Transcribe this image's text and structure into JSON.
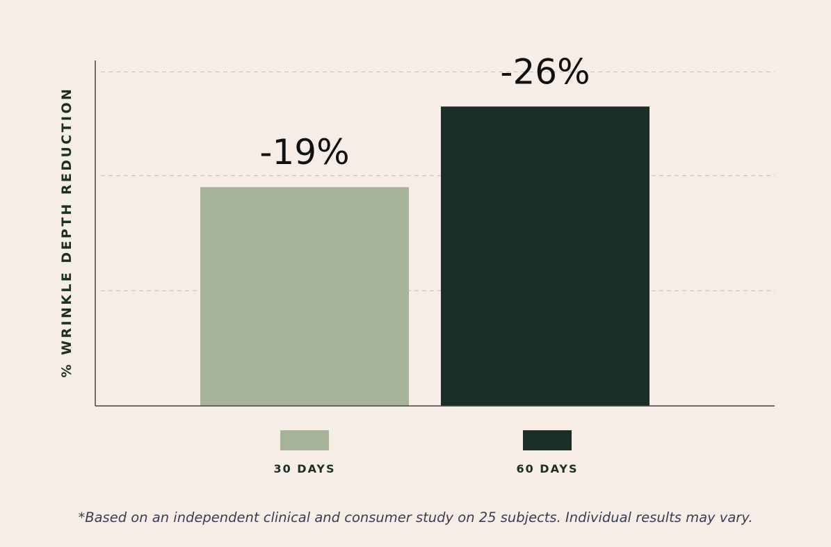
{
  "chart_data": {
    "type": "bar",
    "ylabel": "% WRINKLE DEPTH REDUCTION",
    "xlabel": "",
    "categories": [
      "30 DAYS",
      "60 DAYS"
    ],
    "values": [
      19,
      26
    ],
    "value_labels": [
      "-19%",
      "-26%"
    ],
    "colors": [
      "#a8b499",
      "#1b2e27"
    ],
    "ylim": [
      0,
      30
    ],
    "grid": "horizontal dashed",
    "legend": {
      "placement": "bottom",
      "entries": [
        "30 DAYS",
        "60 DAYS"
      ]
    }
  },
  "footnote": "*Based on an independent clinical and consumer study on 25 subjects. Individual results may vary.",
  "colors": {
    "background": "#f6eee6",
    "axis": "#3a4a42",
    "grid": "#c9c0b8",
    "text_dark": "#1b2e27",
    "footnote": "#3c3c52"
  }
}
